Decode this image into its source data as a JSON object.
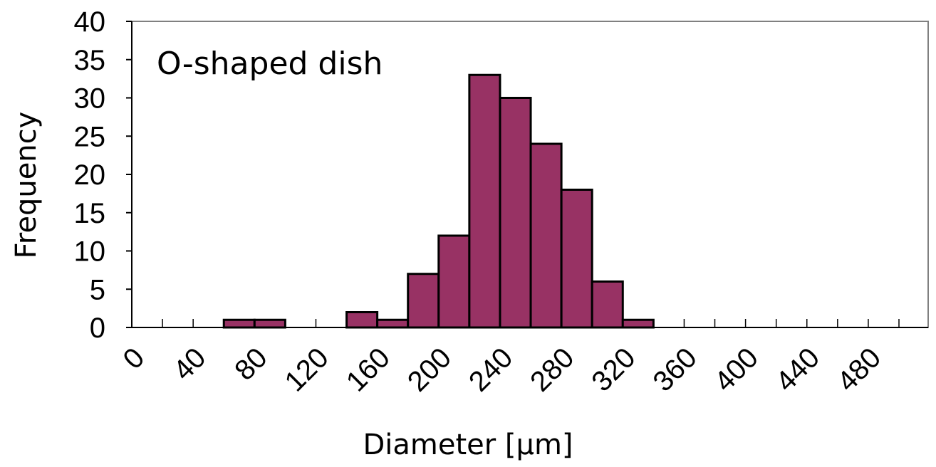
{
  "chart_data": {
    "type": "bar",
    "annotation": "O-shaped dish",
    "xlabel": "Diameter [µm]",
    "ylabel": "Frequency",
    "ylim": [
      0,
      40
    ],
    "yticks": [
      "0",
      "5",
      "10",
      "15",
      "20",
      "25",
      "30",
      "35",
      "40"
    ],
    "xtick_labels": [
      "0",
      "40",
      "80",
      "120",
      "160",
      "200",
      "240",
      "280",
      "320",
      "360",
      "400",
      "440",
      "480"
    ],
    "bin_width": 20,
    "bin_starts": [
      0,
      20,
      40,
      60,
      80,
      100,
      120,
      140,
      160,
      180,
      200,
      220,
      240,
      260,
      280,
      300,
      320,
      340,
      360,
      380,
      400,
      420,
      440,
      460,
      480
    ],
    "values": [
      0,
      0,
      0,
      1,
      1,
      0,
      0,
      2,
      1,
      7,
      12,
      33,
      30,
      24,
      18,
      6,
      1,
      0,
      0,
      0,
      0,
      0,
      0,
      0,
      0
    ],
    "xlim": [
      0,
      500
    ],
    "bar_color": "#983264",
    "grid": false
  }
}
